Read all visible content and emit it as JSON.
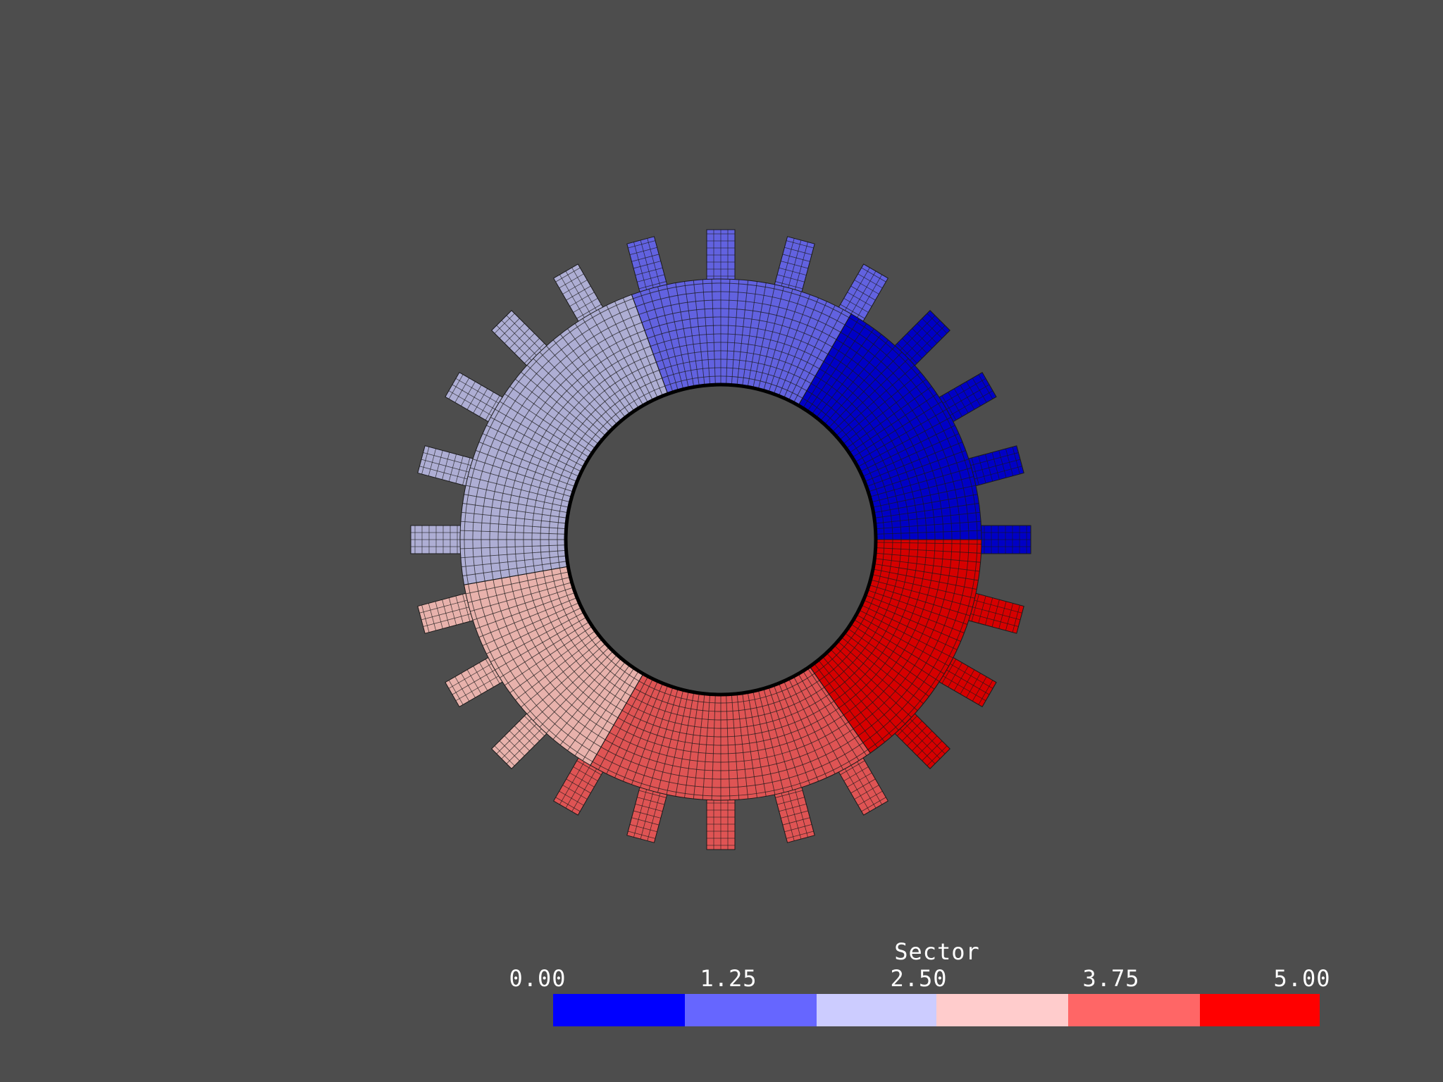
{
  "legend": {
    "title": "Sector",
    "ticks": [
      "0.00",
      "1.25",
      "2.50",
      "3.75",
      "5.00"
    ],
    "bins": [
      {
        "color": "#0000ff"
      },
      {
        "color": "#6666ff"
      },
      {
        "color": "#ccccff"
      },
      {
        "color": "#ffcccc"
      },
      {
        "color": "#ff6666"
      },
      {
        "color": "#ff0000"
      }
    ],
    "range": [
      0,
      5
    ]
  },
  "mesh": {
    "sectors": [
      {
        "value": 0,
        "color": "#0000c6"
      },
      {
        "value": 1,
        "color": "#6262e0"
      },
      {
        "value": 2,
        "color": "#aeaed4"
      },
      {
        "value": 3,
        "color": "#e8b2ac"
      },
      {
        "value": 4,
        "color": "#df5454"
      },
      {
        "value": 5,
        "color": "#d60000"
      }
    ],
    "blade_count": 24,
    "background": "#4d4d4d",
    "grid_color": "#1a1a1a"
  }
}
